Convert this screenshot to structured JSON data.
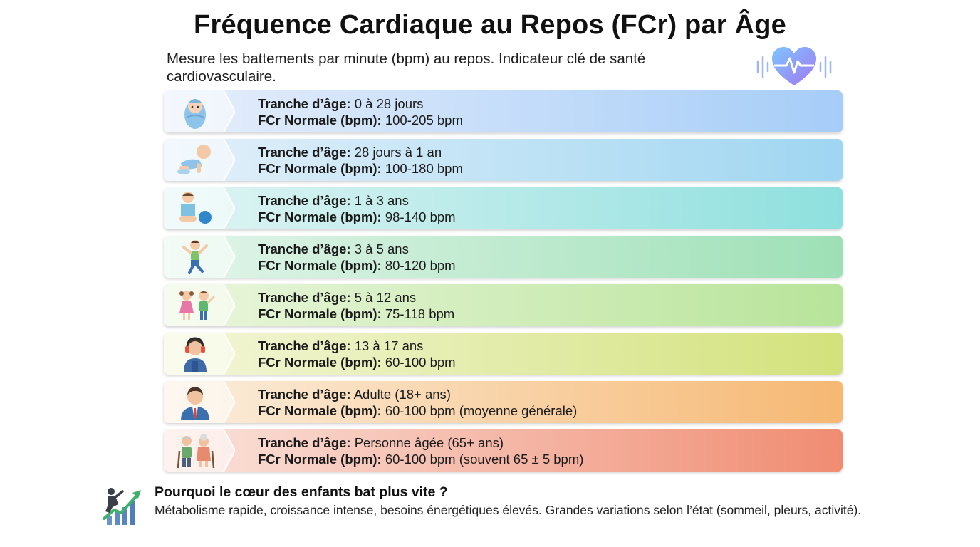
{
  "title": "Fréquence Cardiaque au Repos (FCr) par Âge",
  "subtitle": "Mesure les battements par minute (bpm) au repos. Indicateur clé de santé cardiovasculaire.",
  "header_icon": "heart-pulse-icon",
  "age_label": "Tranche d’âge:",
  "fcr_label": "FCr Normale (bpm):",
  "rows": [
    {
      "age": "0 à 28 jours",
      "fcr": "100-205 bpm",
      "icon": "newborn-icon",
      "color_start": "#e6eefb",
      "color_end": "#a6cdf8"
    },
    {
      "age": "28 jours à 1 an",
      "fcr": "100-180 bpm",
      "icon": "crawling-baby-icon",
      "color_start": "#e3f0fa",
      "color_end": "#9fd6f1"
    },
    {
      "age": "1 à 3 ans",
      "fcr": "98-140 bpm",
      "icon": "toddler-ball-icon",
      "color_start": "#e0f4f4",
      "color_end": "#8ee0de"
    },
    {
      "age": "3 à 5 ans",
      "fcr": "80-120 bpm",
      "icon": "jumping-child-icon",
      "color_start": "#e2f5ea",
      "color_end": "#9ee0b6"
    },
    {
      "age": "5 à 12 ans",
      "fcr": "75-118 bpm",
      "icon": "two-children-icon",
      "color_start": "#eaf6dc",
      "color_end": "#b8e49a"
    },
    {
      "age": "13 à 17 ans",
      "fcr": "60-100 bpm",
      "icon": "teenager-headphones-icon",
      "color_start": "#f3f6d8",
      "color_end": "#d3e27c"
    },
    {
      "age": "Adulte (18+ ans)",
      "fcr": "60-100 bpm (moyenne générale)",
      "icon": "adult-man-icon",
      "color_start": "#fbeedd",
      "color_end": "#f6b873"
    },
    {
      "age": "Personne âgée (65+ ans)",
      "fcr": "60-100 bpm (souvent 65 ± 5 bpm)",
      "icon": "elderly-couple-icon",
      "color_start": "#fae3dc",
      "color_end": "#f08c72"
    }
  ],
  "footer": {
    "icon": "growth-chart-icon",
    "title": "Pourquoi le cœur des enfants bat plus vite ?",
    "text": "Métabolisme rapide, croissance intense, besoins énergétiques élevés. Grandes variations selon l’état (sommeil, pleurs, activité)."
  }
}
